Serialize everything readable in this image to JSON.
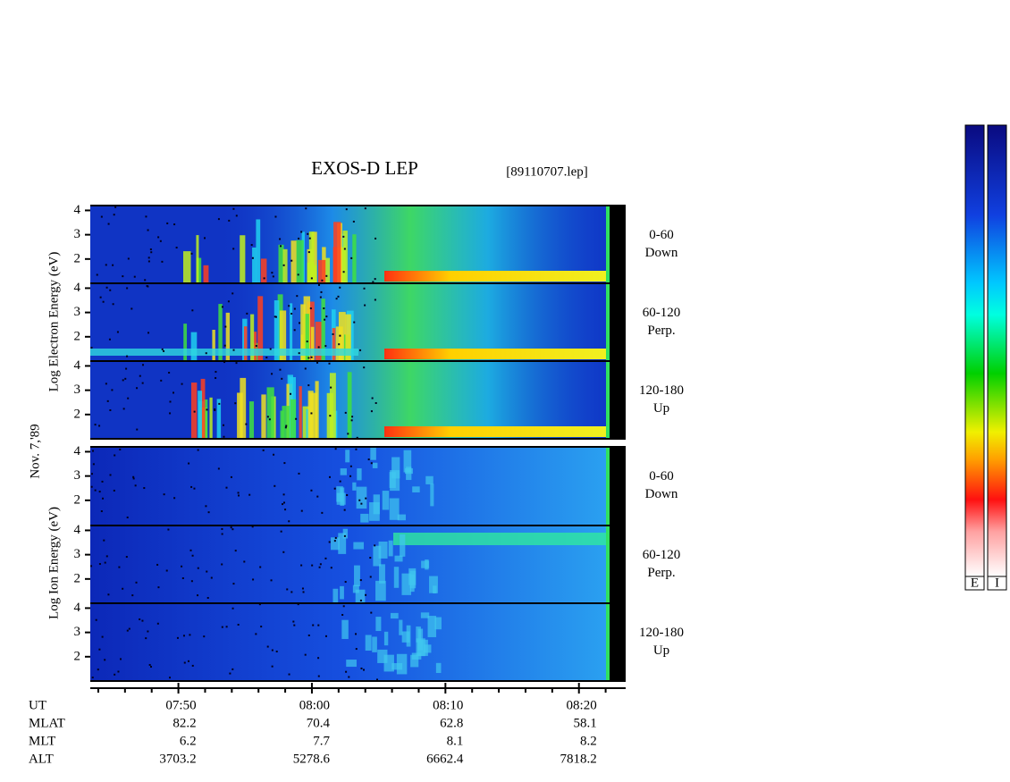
{
  "title": "EXOS-D LEP",
  "file": "[89110707.lep]",
  "date": "Nov. 7,'89",
  "energy_range": [
    1,
    4.2
  ],
  "energy_ticks": [
    2,
    3,
    4
  ],
  "electron": {
    "axis_label": "Log  Electron  Energy (eV)",
    "panels": [
      {
        "angle": "0-60",
        "direction": "Down"
      },
      {
        "angle": "60-120",
        "direction": "Perp."
      },
      {
        "angle": "120-180",
        "direction": "Up"
      }
    ]
  },
  "ion": {
    "axis_label": "Log  Ion  Energy (eV)",
    "panels": [
      {
        "angle": "0-60",
        "direction": "Down"
      },
      {
        "angle": "60-120",
        "direction": "Perp."
      },
      {
        "angle": "120-180",
        "direction": "Up"
      }
    ]
  },
  "time": {
    "label": "UT",
    "range": [
      43.4,
      83.5
    ],
    "ticks": [
      {
        "value": 50,
        "label": "07:50"
      },
      {
        "value": 60,
        "label": "08:00"
      },
      {
        "value": 70,
        "label": "08:10"
      },
      {
        "value": 80,
        "label": "08:20"
      }
    ],
    "minor_ticks": [
      44,
      46,
      48,
      52,
      54,
      56,
      58,
      62,
      64,
      66,
      68,
      72,
      74,
      76,
      78,
      82
    ]
  },
  "ephemeris": [
    {
      "label": "MLAT",
      "values": [
        82.2,
        70.4,
        62.8,
        58.1
      ]
    },
    {
      "label": "MLT",
      "values": [
        6.2,
        7.7,
        8.1,
        8.2
      ]
    },
    {
      "label": "ALT",
      "values": [
        3703.2,
        5278.6,
        6662.4,
        7818.2
      ]
    }
  ],
  "colorbar_labels": [
    "E",
    "I"
  ]
}
